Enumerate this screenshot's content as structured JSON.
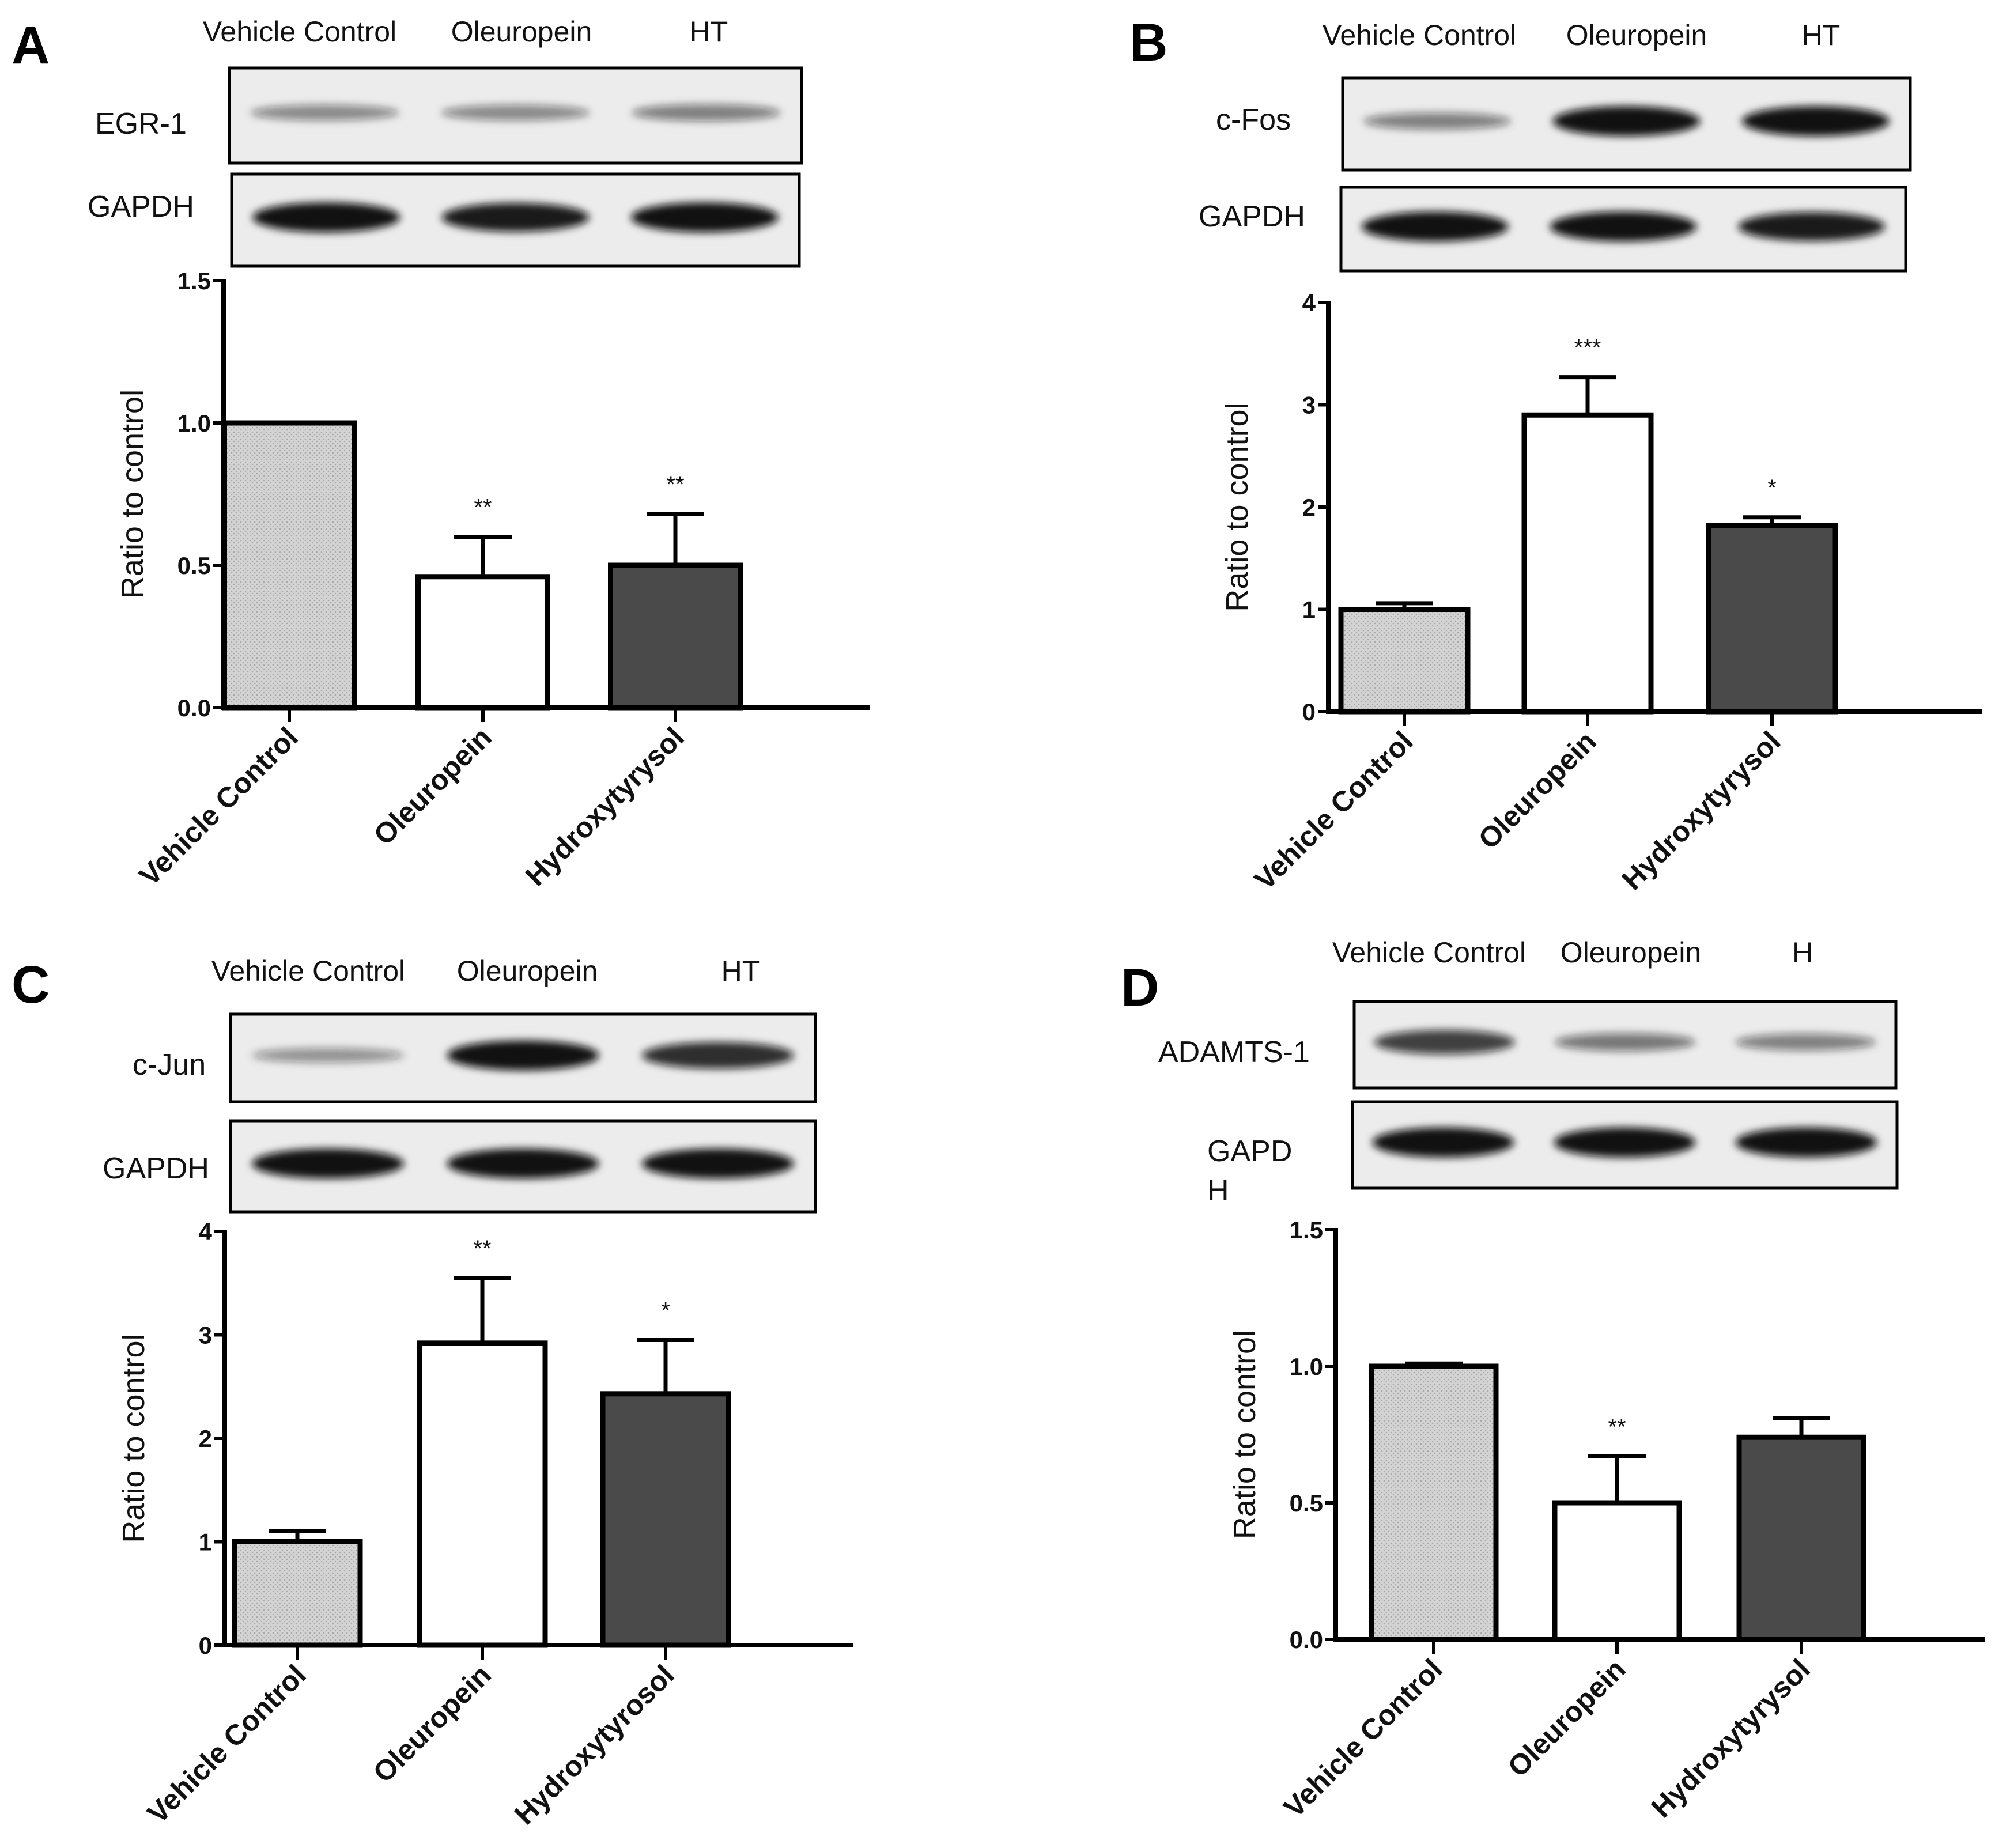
{
  "colors": {
    "vehicle_fill": "#d9d9d9",
    "oleuropein_fill": "#ffffff",
    "hydroxytyrosol_fill": "#4a4a4a",
    "axis": "#000000",
    "blot_background": "#ececec",
    "band": "#101010"
  },
  "chart_data": [
    {
      "panel": "A",
      "type": "bar",
      "blot": {
        "lane_labels": [
          "Vehicle Control",
          "Oleuropein",
          "HT"
        ],
        "rows": [
          {
            "label": "EGR-1",
            "band_intensity": [
              0.35,
              0.35,
              0.4
            ]
          },
          {
            "label": "GAPDH",
            "band_intensity": [
              1.0,
              0.95,
              1.0
            ]
          }
        ]
      },
      "categories": [
        "Vehicle Control",
        "Oleuropein",
        "Hydroxytyrysol"
      ],
      "values": [
        1.0,
        0.46,
        0.5
      ],
      "errors": [
        0.0,
        0.14,
        0.18
      ],
      "significance": [
        "",
        "**",
        "**"
      ],
      "ylabel": "Ratio to control",
      "ylim": [
        0,
        1.5
      ],
      "yticks": [
        "0.0",
        "0.5",
        "1.0",
        "1.5"
      ]
    },
    {
      "panel": "B",
      "type": "bar",
      "blot": {
        "lane_labels": [
          "Vehicle Control",
          "Oleuropein",
          "HT"
        ],
        "rows": [
          {
            "label": "c-Fos",
            "band_intensity": [
              0.4,
              1.0,
              1.0
            ]
          },
          {
            "label": "GAPDH",
            "band_intensity": [
              1.0,
              1.0,
              0.95
            ]
          }
        ]
      },
      "categories": [
        "Vehicle Control",
        "Oleuropein",
        "Hydroxytyrysol"
      ],
      "values": [
        1.0,
        2.9,
        1.82
      ],
      "errors": [
        0.06,
        0.37,
        0.08
      ],
      "significance": [
        "",
        "***",
        "*"
      ],
      "ylabel": "Ratio to control",
      "ylim": [
        0,
        4
      ],
      "yticks": [
        "0",
        "1",
        "2",
        "3",
        "4"
      ]
    },
    {
      "panel": "C",
      "type": "bar",
      "blot": {
        "lane_labels": [
          "Vehicle Control",
          "Oleuropein",
          "HT"
        ],
        "rows": [
          {
            "label": "c-Jun",
            "band_intensity": [
              0.3,
              1.0,
              0.85
            ]
          },
          {
            "label": "GAPDH",
            "band_intensity": [
              1.0,
              1.0,
              1.0
            ]
          }
        ]
      },
      "categories": [
        "Vehicle Control",
        "Oleuropein",
        "Hydroxytyrosol"
      ],
      "values": [
        1.0,
        2.92,
        2.43
      ],
      "errors": [
        0.1,
        0.63,
        0.52
      ],
      "significance": [
        "",
        "**",
        "*"
      ],
      "ylabel": "Ratio to control",
      "ylim": [
        0,
        4
      ],
      "yticks": [
        "0",
        "1",
        "2",
        "3",
        "4"
      ]
    },
    {
      "panel": "D",
      "type": "bar",
      "blot": {
        "lane_labels": [
          "Vehicle Control",
          "Oleuropein",
          "H"
        ],
        "rows": [
          {
            "label": "ADAMTS-1",
            "band_intensity": [
              0.75,
              0.45,
              0.4
            ]
          },
          {
            "label": "GAPD\nH",
            "band_intensity": [
              1.0,
              1.0,
              1.0
            ]
          }
        ]
      },
      "categories": [
        "Vehicle Control",
        "Oleuropein",
        "Hydroxytyrysol"
      ],
      "values": [
        1.0,
        0.5,
        0.74
      ],
      "errors": [
        0.01,
        0.17,
        0.07
      ],
      "significance": [
        "",
        "**",
        ""
      ],
      "ylabel": "Ratio to control",
      "ylim": [
        0,
        1.5
      ],
      "yticks": [
        "0.0",
        "0.5",
        "1.0",
        "1.5"
      ]
    }
  ]
}
